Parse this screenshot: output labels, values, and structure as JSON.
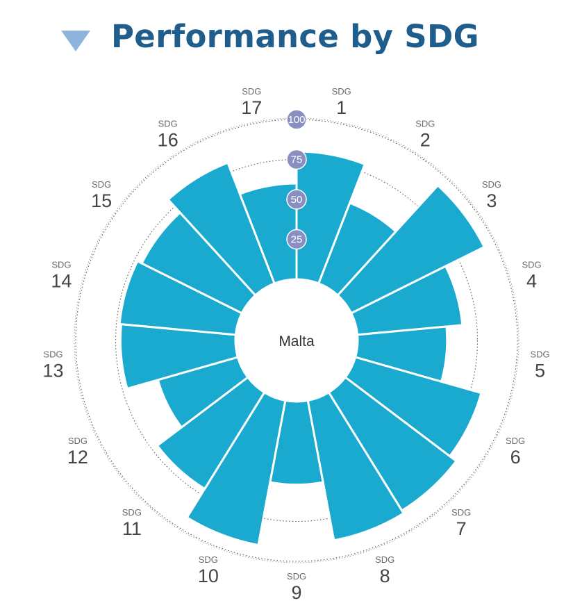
{
  "header": {
    "title": "Performance by SDG",
    "arrow_icon": "triangle-down-icon",
    "arrow_color": "#8fb4dc",
    "title_color": "#1f5d8c"
  },
  "chart_data": {
    "type": "polar-bar",
    "title": "Performance by SDG",
    "center_label": "Malta",
    "rlim": [
      0,
      100
    ],
    "radial_ticks": [
      "25",
      "50",
      "75",
      "100"
    ],
    "radial_tick_values": [
      25,
      50,
      75,
      100
    ],
    "bar_color": "#1aa9cf",
    "tick_badge_color": "#8a8fc2",
    "categories": [
      {
        "prefix": "SDG",
        "number": "1"
      },
      {
        "prefix": "SDG",
        "number": "2"
      },
      {
        "prefix": "SDG",
        "number": "3"
      },
      {
        "prefix": "SDG",
        "number": "4"
      },
      {
        "prefix": "SDG",
        "number": "5"
      },
      {
        "prefix": "SDG",
        "number": "6"
      },
      {
        "prefix": "SDG",
        "number": "7"
      },
      {
        "prefix": "SDG",
        "number": "8"
      },
      {
        "prefix": "SDG",
        "number": "9"
      },
      {
        "prefix": "SDG",
        "number": "10"
      },
      {
        "prefix": "SDG",
        "number": "11"
      },
      {
        "prefix": "SDG",
        "number": "12"
      },
      {
        "prefix": "SDG",
        "number": "13"
      },
      {
        "prefix": "SDG",
        "number": "14"
      },
      {
        "prefix": "SDG",
        "number": "15"
      },
      {
        "prefix": "SDG",
        "number": "16"
      },
      {
        "prefix": "SDG",
        "number": "17"
      }
    ],
    "values": [
      80,
      54,
      93,
      66,
      56,
      82,
      87,
      89,
      52,
      92,
      71,
      52,
      72,
      73,
      70,
      81,
      60
    ]
  }
}
